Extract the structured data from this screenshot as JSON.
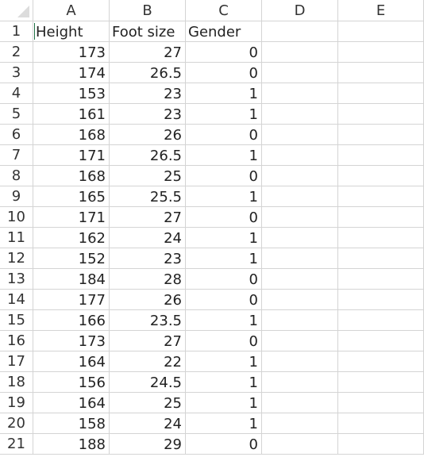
{
  "columns": [
    "A",
    "B",
    "C",
    "D",
    "E"
  ],
  "row_numbers": [
    "1",
    "2",
    "3",
    "4",
    "5",
    "6",
    "7",
    "8",
    "9",
    "10",
    "11",
    "12",
    "13",
    "14",
    "15",
    "16",
    "17",
    "18",
    "19",
    "20",
    "21"
  ],
  "headers": [
    "Height",
    "Foot size",
    "Gender"
  ],
  "data": [
    [
      "173",
      "27",
      "0"
    ],
    [
      "174",
      "26.5",
      "0"
    ],
    [
      "153",
      "23",
      "1"
    ],
    [
      "161",
      "23",
      "1"
    ],
    [
      "168",
      "26",
      "0"
    ],
    [
      "171",
      "26.5",
      "1"
    ],
    [
      "168",
      "25",
      "0"
    ],
    [
      "165",
      "25.5",
      "1"
    ],
    [
      "171",
      "27",
      "0"
    ],
    [
      "162",
      "24",
      "1"
    ],
    [
      "152",
      "23",
      "1"
    ],
    [
      "184",
      "28",
      "0"
    ],
    [
      "177",
      "26",
      "0"
    ],
    [
      "166",
      "23.5",
      "1"
    ],
    [
      "173",
      "27",
      "0"
    ],
    [
      "164",
      "22",
      "1"
    ],
    [
      "156",
      "24.5",
      "1"
    ],
    [
      "164",
      "25",
      "1"
    ],
    [
      "158",
      "24",
      "1"
    ],
    [
      "188",
      "29",
      "0"
    ]
  ],
  "colors": {
    "gridline": "#d4d4d4",
    "header_text": "#333333",
    "cell_text": "#222222",
    "active_cursor": "#217346"
  }
}
